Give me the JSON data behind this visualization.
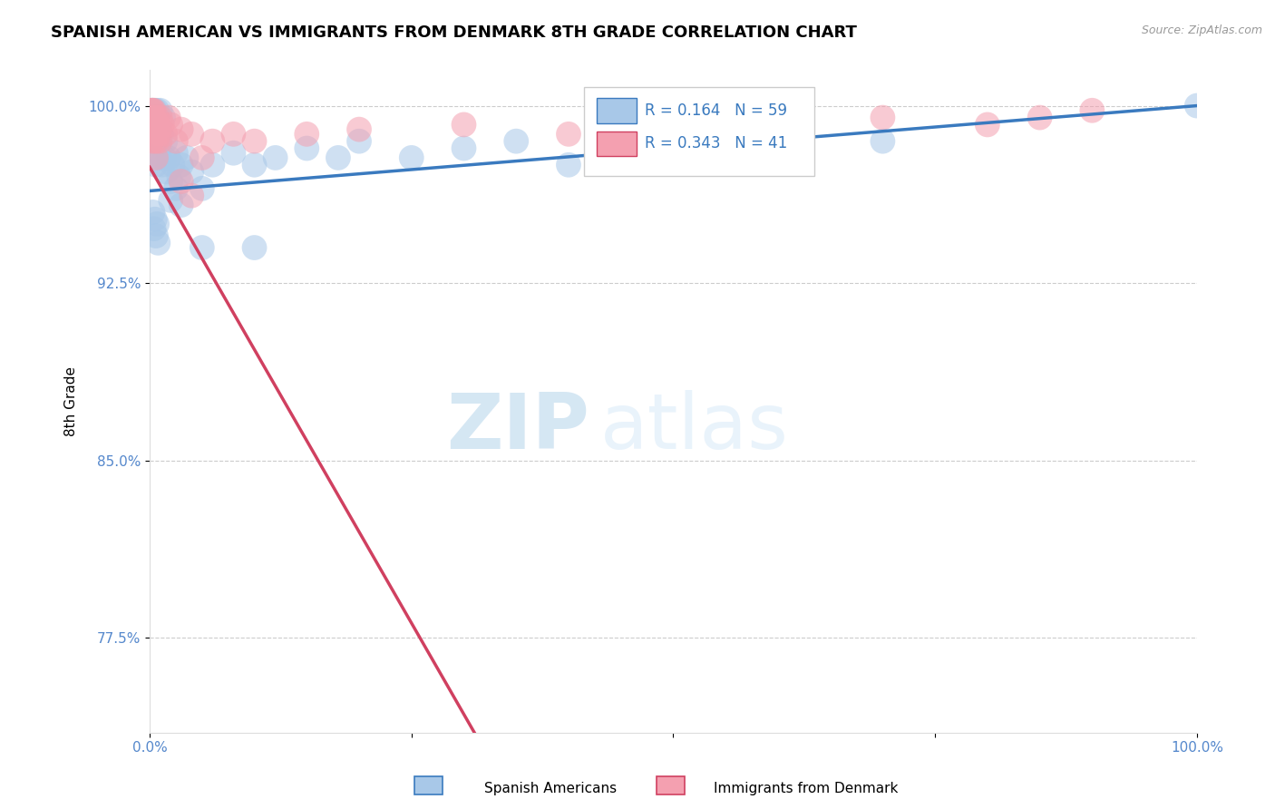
{
  "title": "SPANISH AMERICAN VS IMMIGRANTS FROM DENMARK 8TH GRADE CORRELATION CHART",
  "source": "Source: ZipAtlas.com",
  "ylabel": "8th Grade",
  "xlabel": "",
  "xlim": [
    0.0,
    1.0
  ],
  "ylim": [
    0.735,
    1.015
  ],
  "yticks": [
    0.775,
    0.85,
    0.925,
    1.0
  ],
  "ytick_labels": [
    "77.5%",
    "85.0%",
    "92.5%",
    "100.0%"
  ],
  "xticks": [
    0.0,
    0.25,
    0.5,
    0.75,
    1.0
  ],
  "xtick_labels": [
    "0.0%",
    "",
    "",
    "",
    "100.0%"
  ],
  "blue_R": 0.164,
  "blue_N": 59,
  "pink_R": 0.343,
  "pink_N": 41,
  "blue_color": "#a8c8e8",
  "pink_color": "#f4a0b0",
  "blue_line_color": "#3a7abf",
  "pink_line_color": "#d04060",
  "legend_blue_label": "Spanish Americans",
  "legend_pink_label": "Immigrants from Denmark",
  "blue_scatter_x": [
    0.001,
    0.002,
    0.002,
    0.003,
    0.003,
    0.004,
    0.004,
    0.005,
    0.005,
    0.006,
    0.006,
    0.007,
    0.007,
    0.008,
    0.008,
    0.009,
    0.01,
    0.01,
    0.011,
    0.012,
    0.013,
    0.014,
    0.015,
    0.016,
    0.018,
    0.02,
    0.022,
    0.025,
    0.028,
    0.03,
    0.035,
    0.04,
    0.05,
    0.06,
    0.08,
    0.1,
    0.12,
    0.15,
    0.18,
    0.2,
    0.25,
    0.3,
    0.35,
    0.4,
    0.5,
    0.6,
    0.7,
    0.02,
    0.025,
    0.03,
    0.003,
    0.004,
    0.005,
    0.006,
    0.007,
    0.008,
    0.05,
    0.1,
    1.0
  ],
  "blue_scatter_y": [
    0.99,
    0.998,
    0.985,
    0.998,
    0.992,
    0.995,
    0.988,
    0.985,
    0.998,
    0.988,
    0.975,
    0.998,
    0.99,
    0.978,
    0.992,
    0.985,
    0.998,
    0.978,
    0.988,
    0.975,
    0.995,
    0.978,
    0.985,
    0.972,
    0.978,
    0.968,
    0.975,
    0.98,
    0.97,
    0.975,
    0.978,
    0.972,
    0.965,
    0.975,
    0.98,
    0.975,
    0.978,
    0.982,
    0.978,
    0.985,
    0.978,
    0.982,
    0.985,
    0.975,
    0.98,
    0.978,
    0.985,
    0.96,
    0.965,
    0.958,
    0.955,
    0.948,
    0.952,
    0.945,
    0.95,
    0.942,
    0.94,
    0.94,
    1.0
  ],
  "pink_scatter_x": [
    0.001,
    0.001,
    0.002,
    0.002,
    0.003,
    0.003,
    0.004,
    0.004,
    0.005,
    0.005,
    0.006,
    0.006,
    0.007,
    0.007,
    0.008,
    0.009,
    0.01,
    0.01,
    0.012,
    0.015,
    0.018,
    0.02,
    0.025,
    0.03,
    0.04,
    0.05,
    0.06,
    0.08,
    0.1,
    0.15,
    0.2,
    0.3,
    0.4,
    0.5,
    0.6,
    0.7,
    0.8,
    0.85,
    0.9,
    0.03,
    0.04
  ],
  "pink_scatter_y": [
    0.998,
    0.992,
    0.998,
    0.985,
    0.998,
    0.992,
    0.995,
    0.998,
    0.988,
    0.985,
    0.992,
    0.978,
    0.995,
    0.985,
    0.992,
    0.988,
    0.995,
    0.985,
    0.992,
    0.988,
    0.995,
    0.992,
    0.985,
    0.99,
    0.988,
    0.978,
    0.985,
    0.988,
    0.985,
    0.988,
    0.99,
    0.992,
    0.988,
    0.992,
    0.99,
    0.995,
    0.992,
    0.995,
    0.998,
    0.968,
    0.962
  ],
  "watermark_zip": "ZIP",
  "watermark_atlas": "atlas",
  "background_color": "#ffffff",
  "grid_color": "#cccccc",
  "tick_color": "#5588cc",
  "title_fontsize": 13,
  "axis_label_fontsize": 11,
  "tick_fontsize": 11,
  "legend_R_color": "#3a7abf",
  "legend_N_color": "#3a7abf"
}
